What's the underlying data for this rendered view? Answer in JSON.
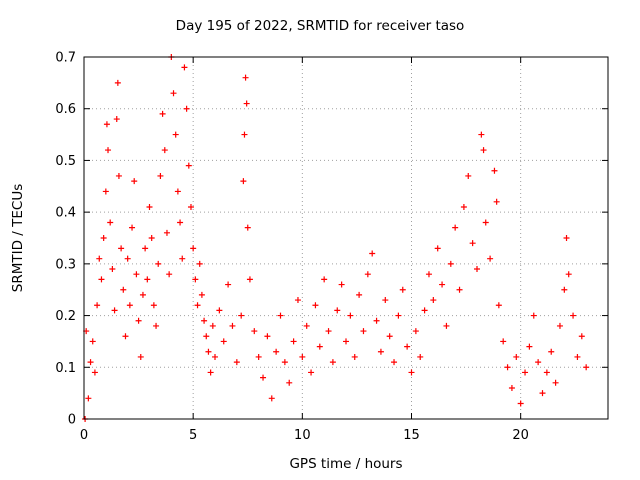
{
  "chart_data": {
    "type": "scatter",
    "title": "Day 195 of 2022, SRMTID for receiver taso",
    "xlabel": "GPS time / hours",
    "ylabel": "SRMTID / TECUs",
    "xlim": [
      0,
      24
    ],
    "ylim": [
      0,
      0.7
    ],
    "xticks": [
      0,
      5,
      10,
      15,
      20
    ],
    "xtick_labels": [
      "0",
      "5",
      "10",
      "15",
      "20"
    ],
    "yticks": [
      0,
      0.1,
      0.2,
      0.3,
      0.4,
      0.5,
      0.6,
      0.7
    ],
    "ytick_labels": [
      "0",
      "0.1",
      "0.2",
      "0.3",
      "0.4",
      "0.5",
      "0.6",
      "0.7"
    ],
    "grid": true,
    "marker": "+",
    "series": [
      {
        "name": "SRMTID",
        "color": "#ff0000",
        "points": [
          [
            0.05,
            0.0
          ],
          [
            0.1,
            0.17
          ],
          [
            0.2,
            0.04
          ],
          [
            0.3,
            0.11
          ],
          [
            0.4,
            0.15
          ],
          [
            0.5,
            0.09
          ],
          [
            0.6,
            0.22
          ],
          [
            0.7,
            0.31
          ],
          [
            0.8,
            0.27
          ],
          [
            0.9,
            0.35
          ],
          [
            1.0,
            0.44
          ],
          [
            1.05,
            0.57
          ],
          [
            1.1,
            0.52
          ],
          [
            1.2,
            0.38
          ],
          [
            1.3,
            0.29
          ],
          [
            1.4,
            0.21
          ],
          [
            1.5,
            0.58
          ],
          [
            1.55,
            0.65
          ],
          [
            1.6,
            0.47
          ],
          [
            1.7,
            0.33
          ],
          [
            1.8,
            0.25
          ],
          [
            1.9,
            0.16
          ],
          [
            2.0,
            0.31
          ],
          [
            2.1,
            0.22
          ],
          [
            2.2,
            0.37
          ],
          [
            2.3,
            0.46
          ],
          [
            2.4,
            0.28
          ],
          [
            2.5,
            0.19
          ],
          [
            2.6,
            0.12
          ],
          [
            2.7,
            0.24
          ],
          [
            2.8,
            0.33
          ],
          [
            2.9,
            0.27
          ],
          [
            3.0,
            0.41
          ],
          [
            3.1,
            0.35
          ],
          [
            3.2,
            0.22
          ],
          [
            3.3,
            0.18
          ],
          [
            3.4,
            0.3
          ],
          [
            3.5,
            0.47
          ],
          [
            3.6,
            0.59
          ],
          [
            3.7,
            0.52
          ],
          [
            3.8,
            0.36
          ],
          [
            3.9,
            0.28
          ],
          [
            4.0,
            0.7
          ],
          [
            4.1,
            0.63
          ],
          [
            4.2,
            0.55
          ],
          [
            4.3,
            0.44
          ],
          [
            4.4,
            0.38
          ],
          [
            4.5,
            0.31
          ],
          [
            4.6,
            0.68
          ],
          [
            4.7,
            0.6
          ],
          [
            4.8,
            0.49
          ],
          [
            4.9,
            0.41
          ],
          [
            5.0,
            0.33
          ],
          [
            5.1,
            0.27
          ],
          [
            5.2,
            0.22
          ],
          [
            5.3,
            0.3
          ],
          [
            5.4,
            0.24
          ],
          [
            5.5,
            0.19
          ],
          [
            5.6,
            0.16
          ],
          [
            5.7,
            0.13
          ],
          [
            5.8,
            0.09
          ],
          [
            5.9,
            0.18
          ],
          [
            6.0,
            0.12
          ],
          [
            6.2,
            0.21
          ],
          [
            6.4,
            0.15
          ],
          [
            6.6,
            0.26
          ],
          [
            6.8,
            0.18
          ],
          [
            7.0,
            0.11
          ],
          [
            7.2,
            0.2
          ],
          [
            7.3,
            0.46
          ],
          [
            7.35,
            0.55
          ],
          [
            7.4,
            0.66
          ],
          [
            7.45,
            0.61
          ],
          [
            7.5,
            0.37
          ],
          [
            7.6,
            0.27
          ],
          [
            7.8,
            0.17
          ],
          [
            8.0,
            0.12
          ],
          [
            8.2,
            0.08
          ],
          [
            8.4,
            0.16
          ],
          [
            8.6,
            0.04
          ],
          [
            8.8,
            0.13
          ],
          [
            9.0,
            0.2
          ],
          [
            9.2,
            0.11
          ],
          [
            9.4,
            0.07
          ],
          [
            9.6,
            0.15
          ],
          [
            9.8,
            0.23
          ],
          [
            10.0,
            0.12
          ],
          [
            10.2,
            0.18
          ],
          [
            10.4,
            0.09
          ],
          [
            10.6,
            0.22
          ],
          [
            10.8,
            0.14
          ],
          [
            11.0,
            0.27
          ],
          [
            11.2,
            0.17
          ],
          [
            11.4,
            0.11
          ],
          [
            11.6,
            0.21
          ],
          [
            11.8,
            0.26
          ],
          [
            12.0,
            0.15
          ],
          [
            12.2,
            0.2
          ],
          [
            12.4,
            0.12
          ],
          [
            12.6,
            0.24
          ],
          [
            12.8,
            0.17
          ],
          [
            13.0,
            0.28
          ],
          [
            13.2,
            0.32
          ],
          [
            13.4,
            0.19
          ],
          [
            13.6,
            0.13
          ],
          [
            13.8,
            0.23
          ],
          [
            14.0,
            0.16
          ],
          [
            14.2,
            0.11
          ],
          [
            14.4,
            0.2
          ],
          [
            14.6,
            0.25
          ],
          [
            14.8,
            0.14
          ],
          [
            15.0,
            0.09
          ],
          [
            15.2,
            0.17
          ],
          [
            15.4,
            0.12
          ],
          [
            15.6,
            0.21
          ],
          [
            15.8,
            0.28
          ],
          [
            16.0,
            0.23
          ],
          [
            16.2,
            0.33
          ],
          [
            16.4,
            0.26
          ],
          [
            16.6,
            0.18
          ],
          [
            16.8,
            0.3
          ],
          [
            17.0,
            0.37
          ],
          [
            17.2,
            0.25
          ],
          [
            17.4,
            0.41
          ],
          [
            17.6,
            0.47
          ],
          [
            17.8,
            0.34
          ],
          [
            18.0,
            0.29
          ],
          [
            18.2,
            0.55
          ],
          [
            18.3,
            0.52
          ],
          [
            18.4,
            0.38
          ],
          [
            18.6,
            0.31
          ],
          [
            18.8,
            0.48
          ],
          [
            18.9,
            0.42
          ],
          [
            19.0,
            0.22
          ],
          [
            19.2,
            0.15
          ],
          [
            19.4,
            0.1
          ],
          [
            19.6,
            0.06
          ],
          [
            19.8,
            0.12
          ],
          [
            20.0,
            0.03
          ],
          [
            20.2,
            0.09
          ],
          [
            20.4,
            0.14
          ],
          [
            20.6,
            0.2
          ],
          [
            20.8,
            0.11
          ],
          [
            21.0,
            0.05
          ],
          [
            21.2,
            0.09
          ],
          [
            21.4,
            0.13
          ],
          [
            21.6,
            0.07
          ],
          [
            21.8,
            0.18
          ],
          [
            22.0,
            0.25
          ],
          [
            22.1,
            0.35
          ],
          [
            22.2,
            0.28
          ],
          [
            22.4,
            0.2
          ],
          [
            22.6,
            0.12
          ],
          [
            22.8,
            0.16
          ],
          [
            23.0,
            0.1
          ]
        ]
      }
    ]
  }
}
